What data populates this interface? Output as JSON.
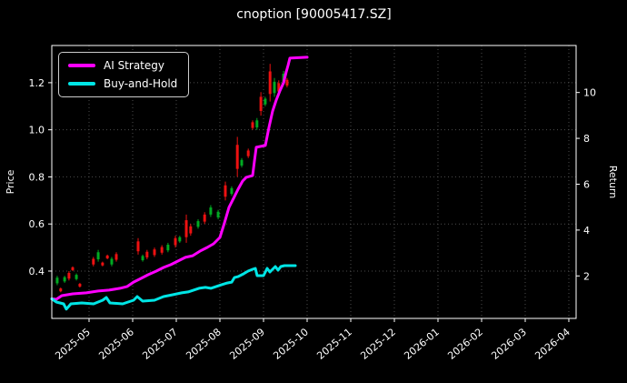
{
  "title": "cnoption [90005417.SZ]",
  "colors": {
    "background": "#000000",
    "text": "#ffffff",
    "grid": "#4d4d4d",
    "spine": "#ffffff",
    "ai_line": "#ff00ff",
    "bh_line": "#00e5e5",
    "candle_up": "#00aa22",
    "candle_down": "#ee1111"
  },
  "legend": {
    "items": [
      {
        "label": "AI Strategy",
        "color": "#ff00ff"
      },
      {
        "label": "Buy-and-Hold",
        "color": "#00e5e5"
      }
    ]
  },
  "chart_data": {
    "type": "mixed",
    "subtypes": [
      "candlestick",
      "line"
    ],
    "title": "cnoption [90005417.SZ]",
    "grid": "dotted",
    "legend_position": "upper left",
    "x_axis": {
      "tick_labels": [
        "2025-05",
        "2025-06",
        "2025-07",
        "2025-08",
        "2025-09",
        "2025-10",
        "2025-11",
        "2025-12",
        "2026-01",
        "2026-02",
        "2026-03",
        "2026-04"
      ],
      "tick_month_index": [
        0,
        1,
        2,
        3,
        4,
        5,
        6,
        7,
        8,
        9,
        10,
        11
      ],
      "range_month_index": [
        -0.854,
        11.167
      ],
      "label_rotation_deg": -40
    },
    "left_axis": {
      "label": "Price",
      "ticks": [
        0.4,
        0.6,
        0.8,
        1.0,
        1.2
      ],
      "range": [
        0.199,
        1.358
      ]
    },
    "right_axis": {
      "label": "Return",
      "ticks": [
        2,
        4,
        6,
        8,
        10
      ],
      "range": [
        0.147,
        12.05
      ]
    },
    "series": [
      {
        "name": "AI Strategy",
        "color": "#ff00ff",
        "axis": "right",
        "final_return": 11.54,
        "points": [
          [
            -0.854,
            1.0
          ],
          [
            -0.75,
            0.98
          ],
          [
            -0.625,
            1.14
          ],
          [
            -0.375,
            1.22
          ],
          [
            -0.063,
            1.26
          ],
          [
            0.208,
            1.34
          ],
          [
            0.458,
            1.38
          ],
          [
            0.708,
            1.46
          ],
          [
            0.875,
            1.54
          ],
          [
            1.021,
            1.73
          ],
          [
            1.188,
            1.89
          ],
          [
            1.354,
            2.05
          ],
          [
            1.542,
            2.21
          ],
          [
            1.708,
            2.37
          ],
          [
            1.875,
            2.49
          ],
          [
            2.042,
            2.65
          ],
          [
            2.208,
            2.81
          ],
          [
            2.375,
            2.88
          ],
          [
            2.542,
            3.08
          ],
          [
            2.708,
            3.24
          ],
          [
            2.854,
            3.4
          ],
          [
            3.0,
            3.68
          ],
          [
            3.104,
            4.31
          ],
          [
            3.208,
            4.99
          ],
          [
            3.313,
            5.38
          ],
          [
            3.417,
            5.78
          ],
          [
            3.521,
            6.14
          ],
          [
            3.604,
            6.3
          ],
          [
            3.75,
            6.38
          ],
          [
            3.792,
            7.01
          ],
          [
            3.833,
            7.61
          ],
          [
            4.042,
            7.69
          ],
          [
            4.125,
            8.48
          ],
          [
            4.208,
            9.19
          ],
          [
            4.292,
            9.67
          ],
          [
            4.375,
            10.07
          ],
          [
            4.458,
            10.42
          ],
          [
            4.521,
            10.9
          ],
          [
            4.563,
            11.18
          ],
          [
            4.604,
            11.5
          ],
          [
            5.0,
            11.54
          ]
        ]
      },
      {
        "name": "Buy-and-Hold",
        "color": "#00e5e5",
        "axis": "right",
        "final_return": 2.45,
        "points": [
          [
            -0.854,
            1.0
          ],
          [
            -0.75,
            0.86
          ],
          [
            -0.583,
            0.78
          ],
          [
            -0.521,
            0.55
          ],
          [
            -0.417,
            0.78
          ],
          [
            -0.167,
            0.82
          ],
          [
            0.104,
            0.78
          ],
          [
            0.313,
            0.94
          ],
          [
            0.396,
            1.06
          ],
          [
            0.479,
            0.82
          ],
          [
            0.771,
            0.78
          ],
          [
            1.021,
            0.94
          ],
          [
            1.104,
            1.1
          ],
          [
            1.229,
            0.9
          ],
          [
            1.5,
            0.94
          ],
          [
            1.708,
            1.1
          ],
          [
            1.917,
            1.18
          ],
          [
            2.125,
            1.26
          ],
          [
            2.271,
            1.3
          ],
          [
            2.396,
            1.38
          ],
          [
            2.521,
            1.46
          ],
          [
            2.667,
            1.5
          ],
          [
            2.792,
            1.46
          ],
          [
            2.917,
            1.54
          ],
          [
            3.042,
            1.62
          ],
          [
            3.167,
            1.69
          ],
          [
            3.271,
            1.73
          ],
          [
            3.333,
            1.93
          ],
          [
            3.417,
            1.97
          ],
          [
            3.542,
            2.09
          ],
          [
            3.646,
            2.21
          ],
          [
            3.75,
            2.29
          ],
          [
            3.813,
            2.33
          ],
          [
            3.854,
            2.01
          ],
          [
            4.0,
            2.01
          ],
          [
            4.083,
            2.33
          ],
          [
            4.146,
            2.17
          ],
          [
            4.208,
            2.29
          ],
          [
            4.271,
            2.41
          ],
          [
            4.333,
            2.25
          ],
          [
            4.396,
            2.41
          ],
          [
            4.479,
            2.45
          ],
          [
            4.729,
            2.45
          ]
        ]
      }
    ],
    "candles": [
      [
        -0.73,
        0.34,
        0.38,
        "u"
      ],
      [
        -0.65,
        0.31,
        0.33,
        "d"
      ],
      [
        -0.56,
        0.35,
        0.38,
        "u"
      ],
      [
        -0.46,
        0.36,
        0.4,
        "d"
      ],
      [
        -0.375,
        0.4,
        0.42,
        "d"
      ],
      [
        -0.29,
        0.36,
        0.39,
        "u"
      ],
      [
        -0.21,
        0.33,
        0.35,
        "d"
      ],
      [
        0.1,
        0.42,
        0.46,
        "d"
      ],
      [
        0.21,
        0.44,
        0.49,
        "u"
      ],
      [
        0.31,
        0.42,
        0.44,
        "d"
      ],
      [
        0.42,
        0.45,
        0.47,
        "d"
      ],
      [
        0.52,
        0.42,
        0.46,
        "u"
      ],
      [
        0.625,
        0.44,
        0.48,
        "d"
      ],
      [
        1.125,
        0.47,
        0.54,
        "d"
      ],
      [
        1.23,
        0.44,
        0.47,
        "u"
      ],
      [
        1.33,
        0.45,
        0.49,
        "d"
      ],
      [
        1.5,
        0.46,
        0.5,
        "d"
      ],
      [
        1.67,
        0.47,
        0.51,
        "d"
      ],
      [
        1.81,
        0.48,
        0.52,
        "u"
      ],
      [
        1.98,
        0.5,
        0.55,
        "d"
      ],
      [
        2.08,
        0.52,
        0.55,
        "u"
      ],
      [
        2.23,
        0.52,
        0.64,
        "d"
      ],
      [
        2.33,
        0.55,
        0.6,
        "d"
      ],
      [
        2.5,
        0.58,
        0.62,
        "u"
      ],
      [
        2.65,
        0.6,
        0.65,
        "d"
      ],
      [
        2.79,
        0.63,
        0.68,
        "u"
      ],
      [
        2.96,
        0.62,
        0.66,
        "u"
      ],
      [
        3.125,
        0.7,
        0.78,
        "d"
      ],
      [
        3.27,
        0.72,
        0.76,
        "u"
      ],
      [
        3.4,
        0.8,
        0.97,
        "d"
      ],
      [
        3.5,
        0.84,
        0.88,
        "u"
      ],
      [
        3.65,
        0.88,
        0.92,
        "d"
      ],
      [
        3.75,
        1.0,
        1.04,
        "d"
      ],
      [
        3.85,
        1.0,
        1.05,
        "u"
      ],
      [
        3.94,
        1.06,
        1.16,
        "d"
      ],
      [
        4.04,
        1.1,
        1.14,
        "u"
      ],
      [
        4.15,
        1.12,
        1.28,
        "d"
      ],
      [
        4.25,
        1.14,
        1.22,
        "u"
      ],
      [
        4.35,
        1.15,
        1.21,
        "d"
      ],
      [
        4.46,
        1.19,
        1.25,
        "u"
      ],
      [
        4.54,
        1.18,
        1.22,
        "d"
      ]
    ]
  }
}
